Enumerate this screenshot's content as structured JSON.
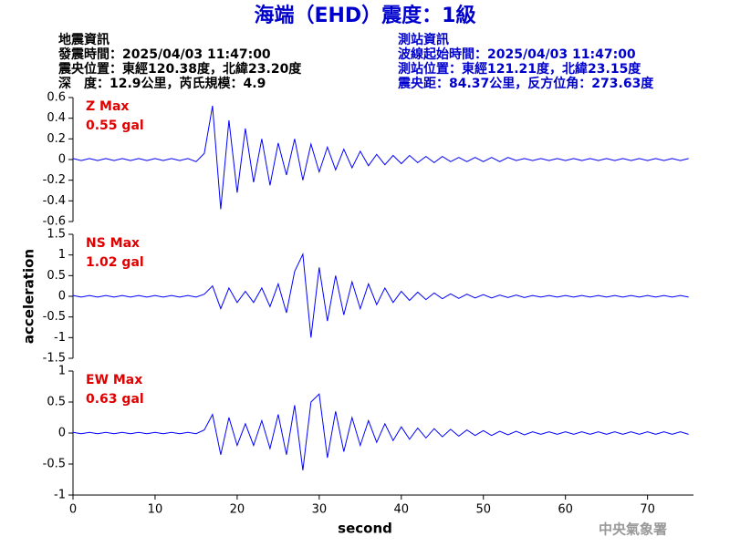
{
  "header": {
    "title": "海端（EHD）震度：1級",
    "left": [
      "地震資訊",
      "發震時間：2025/04/03 11:47:00",
      "震央位置：東經120.38度，北緯23.20度",
      "深　度：12.9公里，芮氏規模：4.9"
    ],
    "right": [
      "測站資訊",
      "波線起始時間：2025/04/03 11:47:00",
      "測站位置：東經121.21度，北緯23.15度",
      "震央距：84.37公里，反方位角：273.63度"
    ],
    "footer": "中央氣象署"
  },
  "chart_data": [
    {
      "type": "line",
      "annotations": [
        "Z Max",
        "0.55 gal"
      ],
      "xlim": [
        0,
        75.6
      ],
      "ylim": [
        -0.6,
        0.6
      ],
      "yticks": [
        0.6,
        0.4,
        0.2,
        0,
        -0.2,
        -0.4,
        -0.6
      ],
      "x": [
        0,
        1,
        2,
        3,
        4,
        5,
        6,
        7,
        8,
        9,
        10,
        11,
        12,
        13,
        14,
        15,
        16,
        17,
        18,
        19,
        20,
        21,
        22,
        23,
        24,
        25,
        26,
        27,
        28,
        29,
        30,
        31,
        32,
        33,
        34,
        35,
        36,
        37,
        38,
        39,
        40,
        41,
        42,
        43,
        44,
        45,
        46,
        47,
        48,
        49,
        50,
        51,
        52,
        53,
        54,
        55,
        56,
        57,
        58,
        59,
        60,
        61,
        62,
        63,
        64,
        65,
        66,
        67,
        68,
        69,
        70,
        71,
        72,
        73,
        74,
        75
      ],
      "series": [
        {
          "color": "#0000ff",
          "values": [
            0.01,
            -0.01,
            0.01,
            -0.01,
            0.01,
            -0.01,
            0.01,
            -0.01,
            0.01,
            -0.01,
            0.01,
            -0.01,
            0.01,
            -0.01,
            0.01,
            -0.02,
            0.06,
            0.52,
            -0.48,
            0.38,
            -0.32,
            0.3,
            -0.22,
            0.2,
            -0.25,
            0.16,
            -0.15,
            0.2,
            -0.2,
            0.15,
            -0.12,
            0.12,
            -0.1,
            0.1,
            -0.08,
            0.08,
            -0.06,
            0.05,
            -0.05,
            0.04,
            -0.04,
            0.04,
            -0.03,
            0.03,
            -0.03,
            0.03,
            -0.02,
            0.02,
            -0.02,
            0.02,
            -0.02,
            0.02,
            -0.02,
            0.02,
            -0.01,
            0.01,
            -0.01,
            0.01,
            -0.01,
            0.01,
            -0.01,
            0.01,
            -0.01,
            0.01,
            -0.01,
            0.01,
            -0.01,
            0.01,
            -0.01,
            0.01,
            -0.01,
            0.01,
            -0.01,
            0.01,
            -0.01,
            0.01
          ]
        }
      ]
    },
    {
      "type": "line",
      "annotations": [
        "NS Max",
        "1.02 gal"
      ],
      "ylabel": "acceleration",
      "xlim": [
        0,
        75.6
      ],
      "ylim": [
        -1.5,
        1.5
      ],
      "yticks": [
        1.5,
        1,
        0.5,
        0,
        -0.5,
        -1,
        -1.5
      ],
      "x": [
        0,
        1,
        2,
        3,
        4,
        5,
        6,
        7,
        8,
        9,
        10,
        11,
        12,
        13,
        14,
        15,
        16,
        17,
        18,
        19,
        20,
        21,
        22,
        23,
        24,
        25,
        26,
        27,
        28,
        29,
        30,
        31,
        32,
        33,
        34,
        35,
        36,
        37,
        38,
        39,
        40,
        41,
        42,
        43,
        44,
        45,
        46,
        47,
        48,
        49,
        50,
        51,
        52,
        53,
        54,
        55,
        56,
        57,
        58,
        59,
        60,
        61,
        62,
        63,
        64,
        65,
        66,
        67,
        68,
        69,
        70,
        71,
        72,
        73,
        74,
        75
      ],
      "series": [
        {
          "color": "#0000ff",
          "values": [
            0.02,
            -0.02,
            0.02,
            -0.02,
            0.02,
            -0.02,
            0.02,
            -0.02,
            0.02,
            -0.02,
            0.02,
            -0.02,
            0.02,
            -0.02,
            0.02,
            -0.02,
            0.05,
            0.25,
            -0.3,
            0.2,
            -0.15,
            0.12,
            -0.15,
            0.2,
            -0.25,
            0.3,
            -0.4,
            0.6,
            1.02,
            -1.0,
            0.7,
            -0.6,
            0.5,
            -0.45,
            0.35,
            -0.3,
            0.3,
            -0.2,
            0.2,
            -0.15,
            0.12,
            -0.1,
            0.1,
            -0.08,
            0.08,
            -0.06,
            0.06,
            -0.05,
            0.05,
            -0.04,
            0.04,
            -0.04,
            0.03,
            -0.03,
            0.03,
            -0.03,
            0.02,
            -0.02,
            0.02,
            -0.02,
            0.02,
            -0.02,
            0.02,
            -0.02,
            0.02,
            -0.02,
            0.02,
            -0.02,
            0.02,
            -0.02,
            0.02,
            -0.02,
            0.02,
            -0.02,
            0.02,
            -0.02
          ]
        }
      ]
    },
    {
      "type": "line",
      "annotations": [
        "EW Max",
        "0.63 gal"
      ],
      "xlabel": "second",
      "xlim": [
        0,
        75.6
      ],
      "xticks": [
        0,
        10,
        20,
        30,
        40,
        50,
        60,
        70
      ],
      "ylim": [
        -1,
        1
      ],
      "yticks": [
        1,
        0.5,
        0,
        -0.5,
        -1
      ],
      "x": [
        0,
        1,
        2,
        3,
        4,
        5,
        6,
        7,
        8,
        9,
        10,
        11,
        12,
        13,
        14,
        15,
        16,
        17,
        18,
        19,
        20,
        21,
        22,
        23,
        24,
        25,
        26,
        27,
        28,
        29,
        30,
        31,
        32,
        33,
        34,
        35,
        36,
        37,
        38,
        39,
        40,
        41,
        42,
        43,
        44,
        45,
        46,
        47,
        48,
        49,
        50,
        51,
        52,
        53,
        54,
        55,
        56,
        57,
        58,
        59,
        60,
        61,
        62,
        63,
        64,
        65,
        66,
        67,
        68,
        69,
        70,
        71,
        72,
        73,
        74,
        75
      ],
      "series": [
        {
          "color": "#0000ff",
          "values": [
            0.01,
            -0.01,
            0.01,
            -0.01,
            0.01,
            -0.01,
            0.01,
            -0.01,
            0.01,
            -0.01,
            0.01,
            -0.01,
            0.01,
            -0.01,
            0.01,
            -0.01,
            0.05,
            0.3,
            -0.35,
            0.25,
            -0.2,
            0.15,
            -0.2,
            0.2,
            -0.25,
            0.3,
            -0.35,
            0.45,
            -0.6,
            0.5,
            0.63,
            -0.4,
            0.35,
            -0.3,
            0.25,
            -0.2,
            0.2,
            -0.15,
            0.15,
            -0.12,
            0.1,
            -0.1,
            0.08,
            -0.08,
            0.07,
            -0.06,
            0.06,
            -0.05,
            0.05,
            -0.04,
            0.04,
            -0.04,
            0.03,
            -0.03,
            0.03,
            -0.03,
            0.02,
            -0.02,
            0.02,
            -0.02,
            0.02,
            -0.02,
            0.02,
            -0.02,
            0.02,
            -0.02,
            0.02,
            -0.02,
            0.02,
            -0.02,
            0.02,
            -0.02,
            0.02,
            -0.02,
            0.02,
            -0.02
          ]
        }
      ]
    }
  ]
}
